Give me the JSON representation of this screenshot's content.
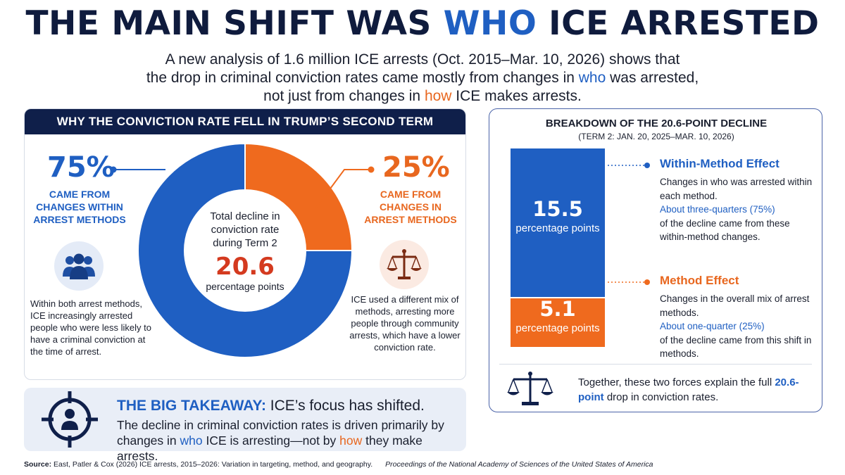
{
  "header": {
    "title_pre": "THE MAIN SHIFT WAS ",
    "title_accent": "WHO",
    "title_post": " ICE ARRESTED",
    "subtitle_line1": "A new analysis of 1.6 million ICE arrests (Oct. 2015–Mar. 10, 2026) shows that",
    "subtitle_line2_pre": "the drop in criminal conviction rates came mostly from changes in ",
    "subtitle_line2_accent": "who",
    "subtitle_line2_post": " was arrested,",
    "subtitle_line3_pre": "not just from changes in ",
    "subtitle_line3_accent": "how",
    "subtitle_line3_post": " ICE makes arrests."
  },
  "left_panel": {
    "header": "WHY THE CONVICTION RATE FELL IN TRUMP’S SECOND TERM",
    "center_label": "Total decline in conviction rate during Term 2",
    "center_value": "20.6",
    "center_unit": "percentage points",
    "within": {
      "pct": "75%",
      "label": "CAME FROM CHANGES WITHIN ARREST METHODS",
      "note": "Within both arrest methods, ICE increasingly arrested people who were less likely to have a criminal conviction at the time of arrest.",
      "icon": "people-group-icon"
    },
    "method": {
      "pct": "25%",
      "label": "CAME FROM CHANGES IN ARREST METHODS",
      "note": "ICE used a different mix of methods, arresting more people through community arrests, which have a lower conviction rate.",
      "icon": "scales-icon"
    }
  },
  "takeaway": {
    "lead": "THE BIG TAKEAWAY:",
    "rest": " ICE’s focus has shifted.",
    "body_pre": "The decline in criminal conviction rates is driven primarily by changes in ",
    "body_who": "who",
    "body_mid": " ICE is arresting—not by ",
    "body_how": "how",
    "body_post": " they make arrests.",
    "icon": "target-person-icon"
  },
  "right_panel": {
    "title": "BREAKDOWN OF THE 20.6-POINT DECLINE",
    "subtitle": "(TERM 2: JAN. 20, 2025–MAR. 10, 2026)",
    "within": {
      "value": "15.5",
      "unit": "percentage points",
      "heading": "Within-Method Effect",
      "text1": "Changes in who was arrested within each method.",
      "text2": "About three-quarters (75%)",
      "text3": "of the decline came from these within-method changes."
    },
    "method": {
      "value": "5.1",
      "unit": "percentage points",
      "heading": "Method Effect",
      "text1": "Changes in the overall mix of arrest methods.",
      "text2": "About one-quarter (25%)",
      "text3": "of the decline came from this shift in methods."
    },
    "together_pre": "Together, these two forces explain the full ",
    "together_accent": "20.6-point",
    "together_post": " drop in conviction rates.",
    "icon": "scales-icon"
  },
  "source": {
    "label": "Source:",
    "text": " East, Patler & Cox (2026)  ICE arrests, 2015–2026: Variation in targeting, method, and geography.",
    "publication": "Proceedings of the National Academy of Sciences of the United States of America"
  },
  "colors": {
    "navy": "#0f1f4a",
    "blue": "#1f5fc2",
    "orange": "#ef6a1e",
    "red": "#d43a1f"
  },
  "chart_data": [
    {
      "type": "pie",
      "categories": [
        "CAME FROM CHANGES WITHIN ARREST METHODS",
        "CAME FROM CHANGES IN ARREST METHODS"
      ],
      "values": [
        75,
        25
      ],
      "colors": [
        "#1f5fc2",
        "#ef6a1e"
      ],
      "title": "WHY THE CONVICTION RATE FELL IN TRUMP’S SECOND TERM"
    },
    {
      "type": "bar",
      "categories": [
        "Within-Method Effect",
        "Method Effect"
      ],
      "values": [
        15.5,
        5.1
      ],
      "colors": [
        "#1f5fc2",
        "#ef6a1e"
      ],
      "title": "BREAKDOWN OF THE 20.6-POINT DECLINE"
    }
  ]
}
